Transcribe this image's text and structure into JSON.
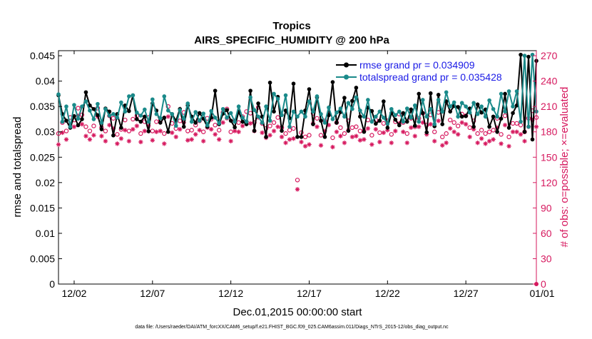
{
  "chart_data": {
    "type": "line",
    "title": "Tropics",
    "subtitle": "AIRS_SPECIFIC_HUMIDITY @ 200 hPa",
    "xlabel": "Dec.01,2015 00:00:00 start",
    "ylabel_left": "rmse and totalspread",
    "ylabel_right": "# of obs: o=possible; ×=evaluated",
    "footnote": "data file: /Users/raeder/DAI/ATM_forcXX/CAM6_setup/f.e21.FHIST_BGC.f09_025.CAM6assim.011/Diags_NTrS_2015-12/obs_diag_output.nc",
    "x_range": [
      0,
      30.5
    ],
    "y_left_range": [
      0,
      0.046
    ],
    "y_right_range": [
      0,
      276
    ],
    "x_ticks": [
      {
        "value": 1,
        "label": "12/02"
      },
      {
        "value": 6,
        "label": "12/07"
      },
      {
        "value": 11,
        "label": "12/12"
      },
      {
        "value": 16,
        "label": "12/17"
      },
      {
        "value": 21,
        "label": "12/22"
      },
      {
        "value": 26,
        "label": "12/27"
      },
      {
        "value": 31,
        "label": "01/01"
      }
    ],
    "y_left_ticks": [
      {
        "value": 0,
        "label": "0"
      },
      {
        "value": 0.005,
        "label": "0.005"
      },
      {
        "value": 0.01,
        "label": "0.01"
      },
      {
        "value": 0.015,
        "label": "0.015"
      },
      {
        "value": 0.02,
        "label": "0.02"
      },
      {
        "value": 0.025,
        "label": "0.025"
      },
      {
        "value": 0.03,
        "label": "0.03"
      },
      {
        "value": 0.035,
        "label": "0.035"
      },
      {
        "value": 0.04,
        "label": "0.04"
      },
      {
        "value": 0.045,
        "label": "0.045"
      }
    ],
    "y_right_ticks": [
      {
        "value": 0,
        "label": "0"
      },
      {
        "value": 30,
        "label": "30"
      },
      {
        "value": 60,
        "label": "60"
      },
      {
        "value": 90,
        "label": "90"
      },
      {
        "value": 120,
        "label": "120"
      },
      {
        "value": 150,
        "label": "150"
      },
      {
        "value": 180,
        "label": "180"
      },
      {
        "value": 210,
        "label": "210"
      },
      {
        "value": 240,
        "label": "240"
      },
      {
        "value": 270,
        "label": "270"
      }
    ],
    "legend_position": "top-right",
    "series": [
      {
        "name": "rmse",
        "legend": "rmse grand pr = 0.034909",
        "color": "#000000",
        "axis": "left",
        "x": [
          0,
          0.25,
          0.5,
          0.75,
          1,
          1.25,
          1.5,
          1.75,
          2,
          2.25,
          2.5,
          2.75,
          3,
          3.25,
          3.5,
          3.75,
          4,
          4.25,
          4.5,
          4.75,
          5,
          5.25,
          5.5,
          5.75,
          6,
          6.25,
          6.5,
          6.75,
          7,
          7.25,
          7.5,
          7.75,
          8,
          8.25,
          8.5,
          8.75,
          9,
          9.25,
          9.5,
          9.75,
          10,
          10.25,
          10.5,
          10.75,
          11,
          11.25,
          11.5,
          11.75,
          12,
          12.25,
          12.5,
          12.75,
          13,
          13.25,
          13.5,
          13.75,
          14,
          14.25,
          14.5,
          14.75,
          15,
          15.25,
          15.5,
          15.75,
          16,
          16.25,
          16.5,
          16.75,
          17,
          17.25,
          17.5,
          17.75,
          18,
          18.25,
          18.5,
          18.75,
          19,
          19.25,
          19.5,
          19.75,
          20,
          20.25,
          20.5,
          20.75,
          21,
          21.25,
          21.5,
          21.75,
          22,
          22.25,
          22.5,
          22.75,
          23,
          23.25,
          23.5,
          23.75,
          24,
          24.25,
          24.5,
          24.75,
          25,
          25.25,
          25.5,
          25.75,
          26,
          26.25,
          26.5,
          26.75,
          27,
          27.25,
          27.5,
          27.75,
          28,
          28.25,
          28.5,
          28.75,
          29,
          29.25,
          29.5,
          29.75,
          30,
          30.25,
          30.5
        ],
        "values": [
          0.0372,
          0.0335,
          0.0322,
          0.0308,
          0.0331,
          0.0313,
          0.0325,
          0.0378,
          0.0352,
          0.0345,
          0.0333,
          0.0305,
          0.0346,
          0.034,
          0.0293,
          0.0335,
          0.0308,
          0.0352,
          0.0341,
          0.0372,
          0.0325,
          0.032,
          0.033,
          0.0301,
          0.0356,
          0.0342,
          0.0318,
          0.0328,
          0.03,
          0.0335,
          0.0322,
          0.0345,
          0.031,
          0.0352,
          0.033,
          0.0318,
          0.0337,
          0.0326,
          0.031,
          0.0328,
          0.0381,
          0.0315,
          0.0336,
          0.0343,
          0.0322,
          0.0309,
          0.034,
          0.032,
          0.0315,
          0.0381,
          0.0302,
          0.0356,
          0.033,
          0.029,
          0.0397,
          0.034,
          0.0369,
          0.0302,
          0.0342,
          0.0327,
          0.0395,
          0.029,
          0.029,
          0.0342,
          0.0384,
          0.0315,
          0.0368,
          0.0322,
          0.029,
          0.0333,
          0.0398,
          0.0318,
          0.0339,
          0.0367,
          0.0302,
          0.0361,
          0.0387,
          0.033,
          0.03,
          0.0348,
          0.0341,
          0.0316,
          0.0322,
          0.036,
          0.0308,
          0.0337,
          0.0324,
          0.0313,
          0.0337,
          0.032,
          0.0344,
          0.0312,
          0.0375,
          0.0337,
          0.0299,
          0.0376,
          0.0311,
          0.0373,
          0.0315,
          0.036,
          0.034,
          0.0351,
          0.0349,
          0.033,
          0.0331,
          0.0346,
          0.031,
          0.0354,
          0.0338,
          0.0344,
          0.031,
          0.033,
          0.03,
          0.0326,
          0.0375,
          0.0308,
          0.0337,
          0.0352,
          0.0452,
          0.03,
          0.0448,
          0.0285,
          0.044
        ]
      },
      {
        "name": "totalspread",
        "legend": "totalspread grand pr = 0.035428",
        "color": "#1a8a8a",
        "axis": "left",
        "x": [
          0,
          0.25,
          0.5,
          0.75,
          1,
          1.25,
          1.5,
          1.75,
          2,
          2.25,
          2.5,
          2.75,
          3,
          3.25,
          3.5,
          3.75,
          4,
          4.25,
          4.5,
          4.75,
          5,
          5.25,
          5.5,
          5.75,
          6,
          6.25,
          6.5,
          6.75,
          7,
          7.25,
          7.5,
          7.75,
          8,
          8.25,
          8.5,
          8.75,
          9,
          9.25,
          9.5,
          9.75,
          10,
          10.25,
          10.5,
          10.75,
          11,
          11.25,
          11.5,
          11.75,
          12,
          12.25,
          12.5,
          12.75,
          13,
          13.25,
          13.5,
          13.75,
          14,
          14.25,
          14.5,
          14.75,
          15,
          15.25,
          15.5,
          15.75,
          16,
          16.25,
          16.5,
          16.75,
          17,
          17.25,
          17.5,
          17.75,
          18,
          18.25,
          18.5,
          18.75,
          19,
          19.25,
          19.5,
          19.75,
          20,
          20.25,
          20.5,
          20.75,
          21,
          21.25,
          21.5,
          21.75,
          22,
          22.25,
          22.5,
          22.75,
          23,
          23.25,
          23.5,
          23.75,
          24,
          24.25,
          24.5,
          24.75,
          25,
          25.25,
          25.5,
          25.75,
          26,
          26.25,
          26.5,
          26.75,
          27,
          27.25,
          27.5,
          27.75,
          28,
          28.25,
          28.5,
          28.75,
          29,
          29.25,
          29.5,
          29.75,
          30,
          30.25,
          30.5
        ],
        "values": [
          0.0374,
          0.032,
          0.035,
          0.031,
          0.0353,
          0.0326,
          0.035,
          0.036,
          0.0342,
          0.0325,
          0.0355,
          0.0318,
          0.0345,
          0.0332,
          0.0335,
          0.0328,
          0.0358,
          0.034,
          0.037,
          0.0372,
          0.0338,
          0.0332,
          0.0344,
          0.032,
          0.0364,
          0.0335,
          0.0327,
          0.037,
          0.0342,
          0.0335,
          0.0312,
          0.0343,
          0.0326,
          0.0356,
          0.032,
          0.0339,
          0.0322,
          0.0336,
          0.0313,
          0.0341,
          0.0328,
          0.0317,
          0.0345,
          0.0328,
          0.0337,
          0.032,
          0.035,
          0.0328,
          0.032,
          0.0368,
          0.0343,
          0.033,
          0.0318,
          0.035,
          0.0322,
          0.0375,
          0.0365,
          0.0333,
          0.0372,
          0.031,
          0.034,
          0.033,
          0.034,
          0.033,
          0.036,
          0.034,
          0.037,
          0.0335,
          0.0318,
          0.0348,
          0.0325,
          0.0338,
          0.0346,
          0.033,
          0.0357,
          0.0345,
          0.0368,
          0.0342,
          0.033,
          0.0363,
          0.032,
          0.033,
          0.034,
          0.0328,
          0.0316,
          0.0345,
          0.0333,
          0.034,
          0.032,
          0.0346,
          0.0328,
          0.0352,
          0.032,
          0.0363,
          0.033,
          0.0345,
          0.0315,
          0.0363,
          0.034,
          0.0378,
          0.035,
          0.0358,
          0.033,
          0.0357,
          0.035,
          0.0338,
          0.0357,
          0.0335,
          0.035,
          0.033,
          0.0362,
          0.0345,
          0.033,
          0.0375,
          0.034,
          0.038,
          0.035,
          0.038,
          0.032,
          0.045,
          0.031,
          0.0452,
          0.034
        ]
      },
      {
        "name": "obs possible",
        "marker": "o",
        "color": "#d6185e",
        "axis": "right",
        "x": [
          0,
          0.25,
          0.5,
          0.75,
          1,
          1.25,
          1.5,
          1.75,
          2,
          2.25,
          2.5,
          2.75,
          3,
          3.25,
          3.5,
          3.75,
          4,
          4.25,
          4.5,
          4.75,
          5,
          5.25,
          5.5,
          5.75,
          6,
          6.25,
          6.5,
          6.75,
          7,
          7.25,
          7.5,
          7.75,
          8,
          8.25,
          8.5,
          8.75,
          9,
          9.25,
          9.5,
          9.75,
          10,
          10.25,
          10.5,
          10.75,
          11,
          11.25,
          11.5,
          11.75,
          12,
          12.25,
          12.5,
          12.75,
          13,
          13.25,
          13.5,
          13.75,
          14,
          14.25,
          14.5,
          14.75,
          15,
          15.25,
          15.5,
          15.75,
          16,
          16.25,
          16.5,
          16.75,
          17,
          17.25,
          17.5,
          17.75,
          18,
          18.25,
          18.5,
          18.75,
          19,
          19.25,
          19.5,
          19.75,
          20,
          20.25,
          20.5,
          20.75,
          21,
          21.25,
          21.5,
          21.75,
          22,
          22.25,
          22.5,
          22.75,
          23,
          23.25,
          23.5,
          23.75,
          24,
          24.25,
          24.5,
          24.75,
          25,
          25.25,
          25.5,
          25.75,
          26,
          26.25,
          26.5,
          26.75,
          27,
          27.25,
          27.5,
          27.75,
          28,
          28.25,
          28.5,
          28.75,
          29,
          29.25,
          29.5,
          29.75,
          30,
          30.25,
          30.5
        ],
        "values": [
          178,
          191,
          181,
          197,
          194,
          208,
          200,
          186,
          181,
          187,
          208,
          185,
          181,
          199,
          196,
          177,
          183,
          194,
          181,
          195,
          199,
          178,
          192,
          197,
          181,
          192,
          193,
          178,
          210,
          190,
          184,
          193,
          203,
          181,
          182,
          188,
          193,
          180,
          196,
          195,
          188,
          182,
          203,
          207,
          180,
          193,
          191,
          198,
          204,
          202,
          191,
          209,
          190,
          184,
          187,
          191,
          197,
          185,
          178,
          182,
          184,
          123,
          179,
          174,
          176,
          202,
          196,
          176,
          193,
          200,
          173,
          191,
          185,
          178,
          193,
          185,
          186,
          181,
          181,
          194,
          176,
          194,
          179,
          190,
          193,
          177,
          192,
          201,
          191,
          178,
          196,
          186,
          196,
          202,
          188,
          200,
          180,
          203,
          174,
          178,
          194,
          191,
          187,
          201,
          199,
          185,
          193,
          178,
          182,
          178,
          180,
          182,
          196,
          177,
          199,
          174,
          190,
          190,
          188,
          180,
          196,
          205,
          197
        ]
      },
      {
        "name": "obs evaluated",
        "marker": "*",
        "color": "#d6185e",
        "axis": "right",
        "x": [
          0,
          0.25,
          0.5,
          0.75,
          1,
          1.25,
          1.5,
          1.75,
          2,
          2.25,
          2.5,
          2.75,
          3,
          3.25,
          3.5,
          3.75,
          4,
          4.25,
          4.5,
          4.75,
          5,
          5.25,
          5.5,
          5.75,
          6,
          6.25,
          6.5,
          6.75,
          7,
          7.25,
          7.5,
          7.75,
          8,
          8.25,
          8.5,
          8.75,
          9,
          9.25,
          9.5,
          9.75,
          10,
          10.25,
          10.5,
          10.75,
          11,
          11.25,
          11.5,
          11.75,
          12,
          12.25,
          12.5,
          12.75,
          13,
          13.25,
          13.5,
          13.75,
          14,
          14.25,
          14.5,
          14.75,
          15,
          15.25,
          15.5,
          15.75,
          16,
          16.25,
          16.5,
          16.75,
          17,
          17.25,
          17.5,
          17.75,
          18,
          18.25,
          18.5,
          18.75,
          19,
          19.25,
          19.5,
          19.75,
          20,
          20.25,
          20.5,
          20.75,
          21,
          21.25,
          21.5,
          21.75,
          22,
          22.25,
          22.5,
          22.75,
          23,
          23.25,
          23.5,
          23.75,
          24,
          24.25,
          24.5,
          24.75,
          25,
          25.25,
          25.5,
          25.75,
          26,
          26.25,
          26.5,
          26.75,
          27,
          27.25,
          27.5,
          27.75,
          28,
          28.25,
          28.5,
          28.75,
          29,
          29.25,
          29.5,
          29.75,
          30,
          30.25,
          30.5
        ],
        "values": [
          165,
          179,
          171,
          188,
          186,
          199,
          189,
          175,
          171,
          176,
          198,
          175,
          169,
          188,
          184,
          166,
          172,
          182,
          169,
          183,
          187,
          168,
          181,
          187,
          170,
          180,
          181,
          166,
          198,
          179,
          174,
          183,
          191,
          170,
          171,
          177,
          182,
          169,
          185,
          183,
          177,
          171,
          191,
          196,
          169,
          181,
          180,
          187,
          192,
          190,
          181,
          197,
          179,
          173,
          176,
          181,
          186,
          174,
          167,
          171,
          172,
          112,
          168,
          163,
          165,
          190,
          186,
          164,
          181,
          188,
          162,
          180,
          175,
          167,
          182,
          174,
          175,
          170,
          171,
          184,
          165,
          183,
          168,
          179,
          182,
          167,
          181,
          190,
          180,
          167,
          185,
          175,
          186,
          191,
          177,
          189,
          169,
          193,
          164,
          167,
          184,
          180,
          177,
          191,
          189,
          174,
          183,
          167,
          172,
          166,
          169,
          171,
          185,
          166,
          188,
          163,
          180,
          180,
          177,
          169,
          186,
          194,
          186
        ]
      }
    ]
  }
}
